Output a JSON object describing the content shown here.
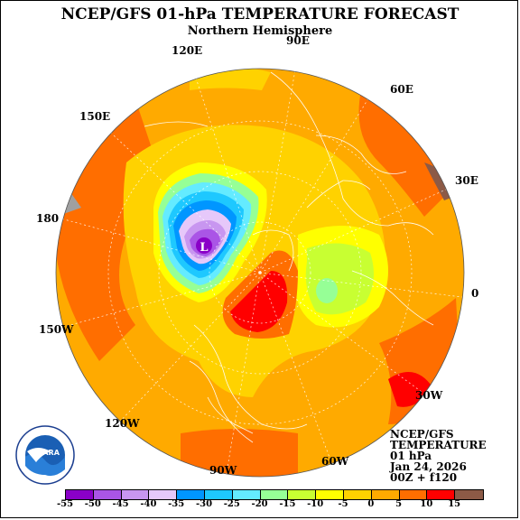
{
  "title": "NCEP/GFS 01-hPa TEMPERATURE FORECAST",
  "subtitle": "Northern Hemisphere",
  "longitude_labels": {
    "e90": "90E",
    "e120": "120E",
    "e60": "60E",
    "e150": "150E",
    "e30": "30E",
    "l180": "180",
    "l0": "0",
    "w150": "150W",
    "w30": "30W",
    "w120": "120W",
    "w60": "60W",
    "w90": "90W"
  },
  "low_marker": "L",
  "info": {
    "line1": "NCEP/GFS",
    "line2": "TEMPERATURE",
    "line3": "01 hPa",
    "line4": "Jan 24, 2026",
    "line5": "00Z + f120"
  },
  "logo": {
    "text": "NOARA"
  },
  "colorbar": {
    "ticks": [
      "-55",
      "-50",
      "-45",
      "-40",
      "-35",
      "-30",
      "-25",
      "-20",
      "-15",
      "-10",
      "-5",
      "0",
      "5",
      "10",
      "15"
    ],
    "colors": [
      "#8a00c8",
      "#aa55e6",
      "#c896f0",
      "#e6c8fa",
      "#0096ff",
      "#1ec8ff",
      "#64ebff",
      "#96ff96",
      "#c8ff32",
      "#ffff00",
      "#ffd200",
      "#ffaa00",
      "#ff6e00",
      "#ff0000",
      "#8c5a46"
    ]
  },
  "map_colors": {
    "ocean_warm": "#ffaa00",
    "hot": "#ff6e00",
    "hottest": "#ff0000",
    "yellow": "#ffd200",
    "lime": "#ffff00",
    "green": "#c8ff32",
    "grey": "#a0a0a0"
  }
}
